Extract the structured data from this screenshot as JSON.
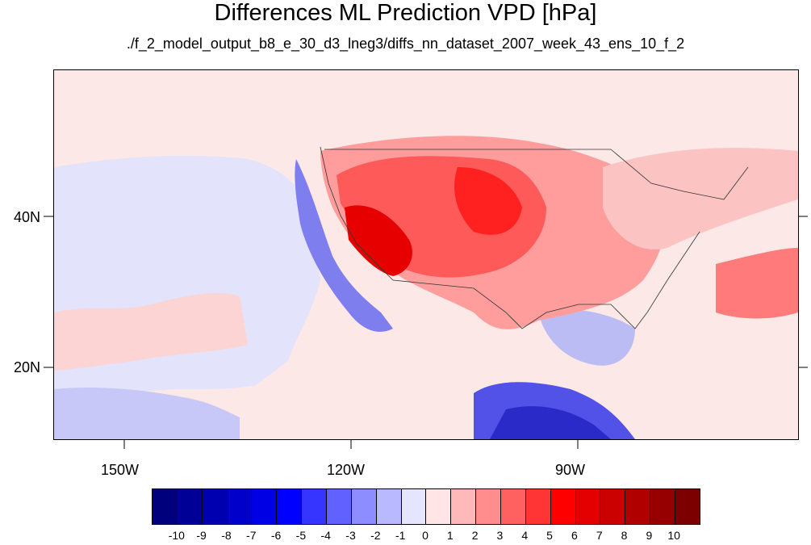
{
  "title": "Differences ML Prediction VPD [hPa]",
  "subtitle": "./f_2_model_output_b8_e_30_d3_lneg3/diffs_nn_dataset_2007_week_43_ens_10_f_2",
  "axes": {
    "lon_labels": [
      "150W",
      "120W",
      "90W"
    ],
    "lat_labels": [
      "40N",
      "20N"
    ]
  },
  "colorbar": {
    "labels": [
      "-10",
      "-9",
      "-8",
      "-7",
      "-6",
      "-5",
      "-4",
      "-3",
      "-2",
      "-1",
      "0",
      "1",
      "2",
      "3",
      "4",
      "5",
      "6",
      "7",
      "8",
      "9",
      "10"
    ],
    "colors": [
      "#00007d",
      "#000097",
      "#0000b1",
      "#0000cb",
      "#0000e5",
      "#0000ff",
      "#3535ff",
      "#6161ff",
      "#8d8dff",
      "#b9b9ff",
      "#e5e5ff",
      "#ffe5e5",
      "#ffb9b9",
      "#ff8d8d",
      "#ff6161",
      "#ff3535",
      "#ff0000",
      "#e50000",
      "#cb0000",
      "#b10000",
      "#970000",
      "#7d0000"
    ]
  }
}
